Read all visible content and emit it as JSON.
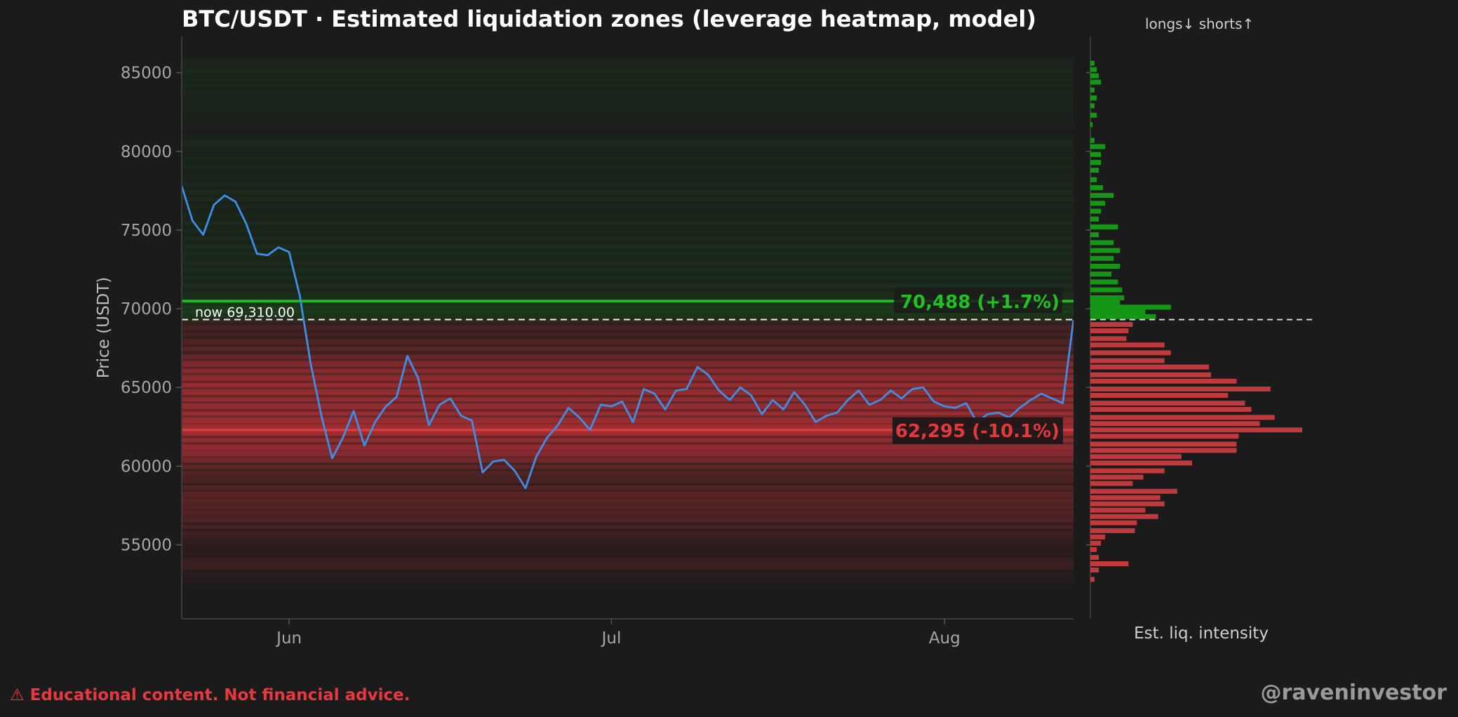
{
  "header": {
    "title": "BTC/USDT · Estimated liquidation zones (leverage heatmap, model)",
    "side_title": "longs↓  shorts↑"
  },
  "footer": {
    "disclaimer": "⚠ Educational content. Not financial advice.",
    "handle": "@raveninvestor"
  },
  "colors": {
    "background": "#1b1b1b",
    "price_line": "#3f8ee6",
    "short_zone": "#22c022",
    "long_zone": "#e0393e",
    "axis_text": "#a6a6a6",
    "current_line": "#ffffff"
  },
  "chart_data": [
    {
      "type": "line",
      "title": "BTC/USDT · Estimated liquidation zones (leverage heatmap, model)",
      "ylabel": "Price (USDT)",
      "xlabel": "",
      "ylim": [
        50300,
        87300
      ],
      "x_ticks": [
        {
          "label": "Jun",
          "date": "2024-06-01"
        },
        {
          "label": "Jul",
          "date": "2024-07-01"
        },
        {
          "label": "Aug",
          "date": "2024-08-01"
        }
      ],
      "y_ticks": [
        55000,
        60000,
        65000,
        70000,
        75000,
        80000,
        85000
      ],
      "grid": false,
      "current_price": 69310,
      "current_label": "now 69,310.00",
      "short_liq_level": {
        "price": 70488,
        "label": "70,488 (+1.7%)"
      },
      "long_liq_level": {
        "price": 62295,
        "label": "62,295 (-10.1%)"
      },
      "series": [
        {
          "name": "",
          "points": [
            [
              "2024-05-22",
              77800
            ],
            [
              "2024-05-23",
              75600
            ],
            [
              "2024-05-24",
              74700
            ],
            [
              "2024-05-25",
              76600
            ],
            [
              "2024-05-26",
              77200
            ],
            [
              "2024-05-27",
              76800
            ],
            [
              "2024-05-28",
              75400
            ],
            [
              "2024-05-29",
              73500
            ],
            [
              "2024-05-30",
              73400
            ],
            [
              "2024-05-31",
              73900
            ],
            [
              "2024-06-01",
              73600
            ],
            [
              "2024-06-02",
              70800
            ],
            [
              "2024-06-03",
              66500
            ],
            [
              "2024-06-04",
              63200
            ],
            [
              "2024-06-05",
              60500
            ],
            [
              "2024-06-06",
              61800
            ],
            [
              "2024-06-07",
              63500
            ],
            [
              "2024-06-08",
              61300
            ],
            [
              "2024-06-09",
              62800
            ],
            [
              "2024-06-10",
              63800
            ],
            [
              "2024-06-11",
              64400
            ],
            [
              "2024-06-12",
              67000
            ],
            [
              "2024-06-13",
              65600
            ],
            [
              "2024-06-14",
              62600
            ],
            [
              "2024-06-15",
              63900
            ],
            [
              "2024-06-16",
              64300
            ],
            [
              "2024-06-17",
              63200
            ],
            [
              "2024-06-18",
              62900
            ],
            [
              "2024-06-19",
              59600
            ],
            [
              "2024-06-20",
              60300
            ],
            [
              "2024-06-21",
              60400
            ],
            [
              "2024-06-22",
              59700
            ],
            [
              "2024-06-23",
              58600
            ],
            [
              "2024-06-24",
              60600
            ],
            [
              "2024-06-25",
              61800
            ],
            [
              "2024-06-26",
              62600
            ],
            [
              "2024-06-27",
              63700
            ],
            [
              "2024-06-28",
              63100
            ],
            [
              "2024-06-29",
              62300
            ],
            [
              "2024-06-30",
              63900
            ],
            [
              "2024-07-01",
              63800
            ],
            [
              "2024-07-02",
              64100
            ],
            [
              "2024-07-03",
              62800
            ],
            [
              "2024-07-04",
              64900
            ],
            [
              "2024-07-05",
              64600
            ],
            [
              "2024-07-06",
              63600
            ],
            [
              "2024-07-07",
              64800
            ],
            [
              "2024-07-08",
              64900
            ],
            [
              "2024-07-09",
              66300
            ],
            [
              "2024-07-10",
              65800
            ],
            [
              "2024-07-11",
              64800
            ],
            [
              "2024-07-12",
              64200
            ],
            [
              "2024-07-13",
              65000
            ],
            [
              "2024-07-14",
              64500
            ],
            [
              "2024-07-15",
              63300
            ],
            [
              "2024-07-16",
              64200
            ],
            [
              "2024-07-17",
              63600
            ],
            [
              "2024-07-18",
              64700
            ],
            [
              "2024-07-19",
              63900
            ],
            [
              "2024-07-20",
              62800
            ],
            [
              "2024-07-21",
              63200
            ],
            [
              "2024-07-22",
              63400
            ],
            [
              "2024-07-23",
              64200
            ],
            [
              "2024-07-24",
              64800
            ],
            [
              "2024-07-25",
              63900
            ],
            [
              "2024-07-26",
              64200
            ],
            [
              "2024-07-27",
              64800
            ],
            [
              "2024-07-28",
              64300
            ],
            [
              "2024-07-29",
              64900
            ],
            [
              "2024-07-30",
              65000
            ],
            [
              "2024-07-31",
              64100
            ],
            [
              "2024-08-01",
              63800
            ],
            [
              "2024-08-02",
              63700
            ],
            [
              "2024-08-03",
              64000
            ],
            [
              "2024-08-04",
              62800
            ],
            [
              "2024-08-05",
              63300
            ],
            [
              "2024-08-06",
              63400
            ],
            [
              "2024-08-07",
              63100
            ],
            [
              "2024-08-08",
              63700
            ],
            [
              "2024-08-09",
              64200
            ],
            [
              "2024-08-10",
              64600
            ],
            [
              "2024-08-11",
              64300
            ],
            [
              "2024-08-12",
              64000
            ],
            [
              "2024-08-13",
              69300
            ]
          ]
        }
      ]
    },
    {
      "type": "bar",
      "orientation": "horizontal",
      "xlabel": "Est. liq. intensity",
      "ylabel": "",
      "categories_note": "price bins (USDT)",
      "series": [
        {
          "name": "shorts",
          "bins": [
            [
              85600,
              0.02
            ],
            [
              85200,
              0.03
            ],
            [
              84800,
              0.04
            ],
            [
              84400,
              0.05
            ],
            [
              83900,
              0.02
            ],
            [
              83400,
              0.03
            ],
            [
              82900,
              0.02
            ],
            [
              82300,
              0.03
            ],
            [
              81700,
              0.01
            ],
            [
              80700,
              0.02
            ],
            [
              80300,
              0.07
            ],
            [
              79800,
              0.05
            ],
            [
              79300,
              0.05
            ],
            [
              78800,
              0.04
            ],
            [
              78200,
              0.03
            ],
            [
              77700,
              0.06
            ],
            [
              77200,
              0.11
            ],
            [
              76700,
              0.07
            ],
            [
              76200,
              0.05
            ],
            [
              75700,
              0.04
            ],
            [
              75200,
              0.13
            ],
            [
              74700,
              0.04
            ],
            [
              74200,
              0.11
            ],
            [
              73700,
              0.14
            ],
            [
              73200,
              0.11
            ],
            [
              72700,
              0.14
            ],
            [
              72200,
              0.1
            ],
            [
              71700,
              0.13
            ],
            [
              71200,
              0.15
            ],
            [
              70700,
              0.16
            ],
            [
              70400,
              0.14
            ],
            [
              70100,
              0.38
            ],
            [
              69800,
              0.26
            ],
            [
              69500,
              0.31
            ]
          ]
        },
        {
          "name": "longs",
          "bins": [
            [
              69000,
              0.2
            ],
            [
              68600,
              0.18
            ],
            [
              68100,
              0.17
            ],
            [
              67700,
              0.35
            ],
            [
              67200,
              0.38
            ],
            [
              66700,
              0.35
            ],
            [
              66300,
              0.56
            ],
            [
              65800,
              0.57
            ],
            [
              65400,
              0.69
            ],
            [
              64900,
              0.85
            ],
            [
              64500,
              0.65
            ],
            [
              64000,
              0.73
            ],
            [
              63600,
              0.76
            ],
            [
              63100,
              0.87
            ],
            [
              62700,
              0.8
            ],
            [
              62300,
              1.0
            ],
            [
              61900,
              0.7
            ],
            [
              61400,
              0.69
            ],
            [
              61000,
              0.69
            ],
            [
              60600,
              0.43
            ],
            [
              60200,
              0.48
            ],
            [
              59700,
              0.35
            ],
            [
              59300,
              0.25
            ],
            [
              58900,
              0.2
            ],
            [
              58400,
              0.41
            ],
            [
              58000,
              0.33
            ],
            [
              57600,
              0.35
            ],
            [
              57200,
              0.26
            ],
            [
              56800,
              0.32
            ],
            [
              56400,
              0.22
            ],
            [
              55900,
              0.21
            ],
            [
              55500,
              0.07
            ],
            [
              55100,
              0.05
            ],
            [
              54700,
              0.03
            ],
            [
              54200,
              0.04
            ],
            [
              53800,
              0.18
            ],
            [
              53400,
              0.04
            ],
            [
              52800,
              0.02
            ]
          ]
        }
      ]
    }
  ]
}
